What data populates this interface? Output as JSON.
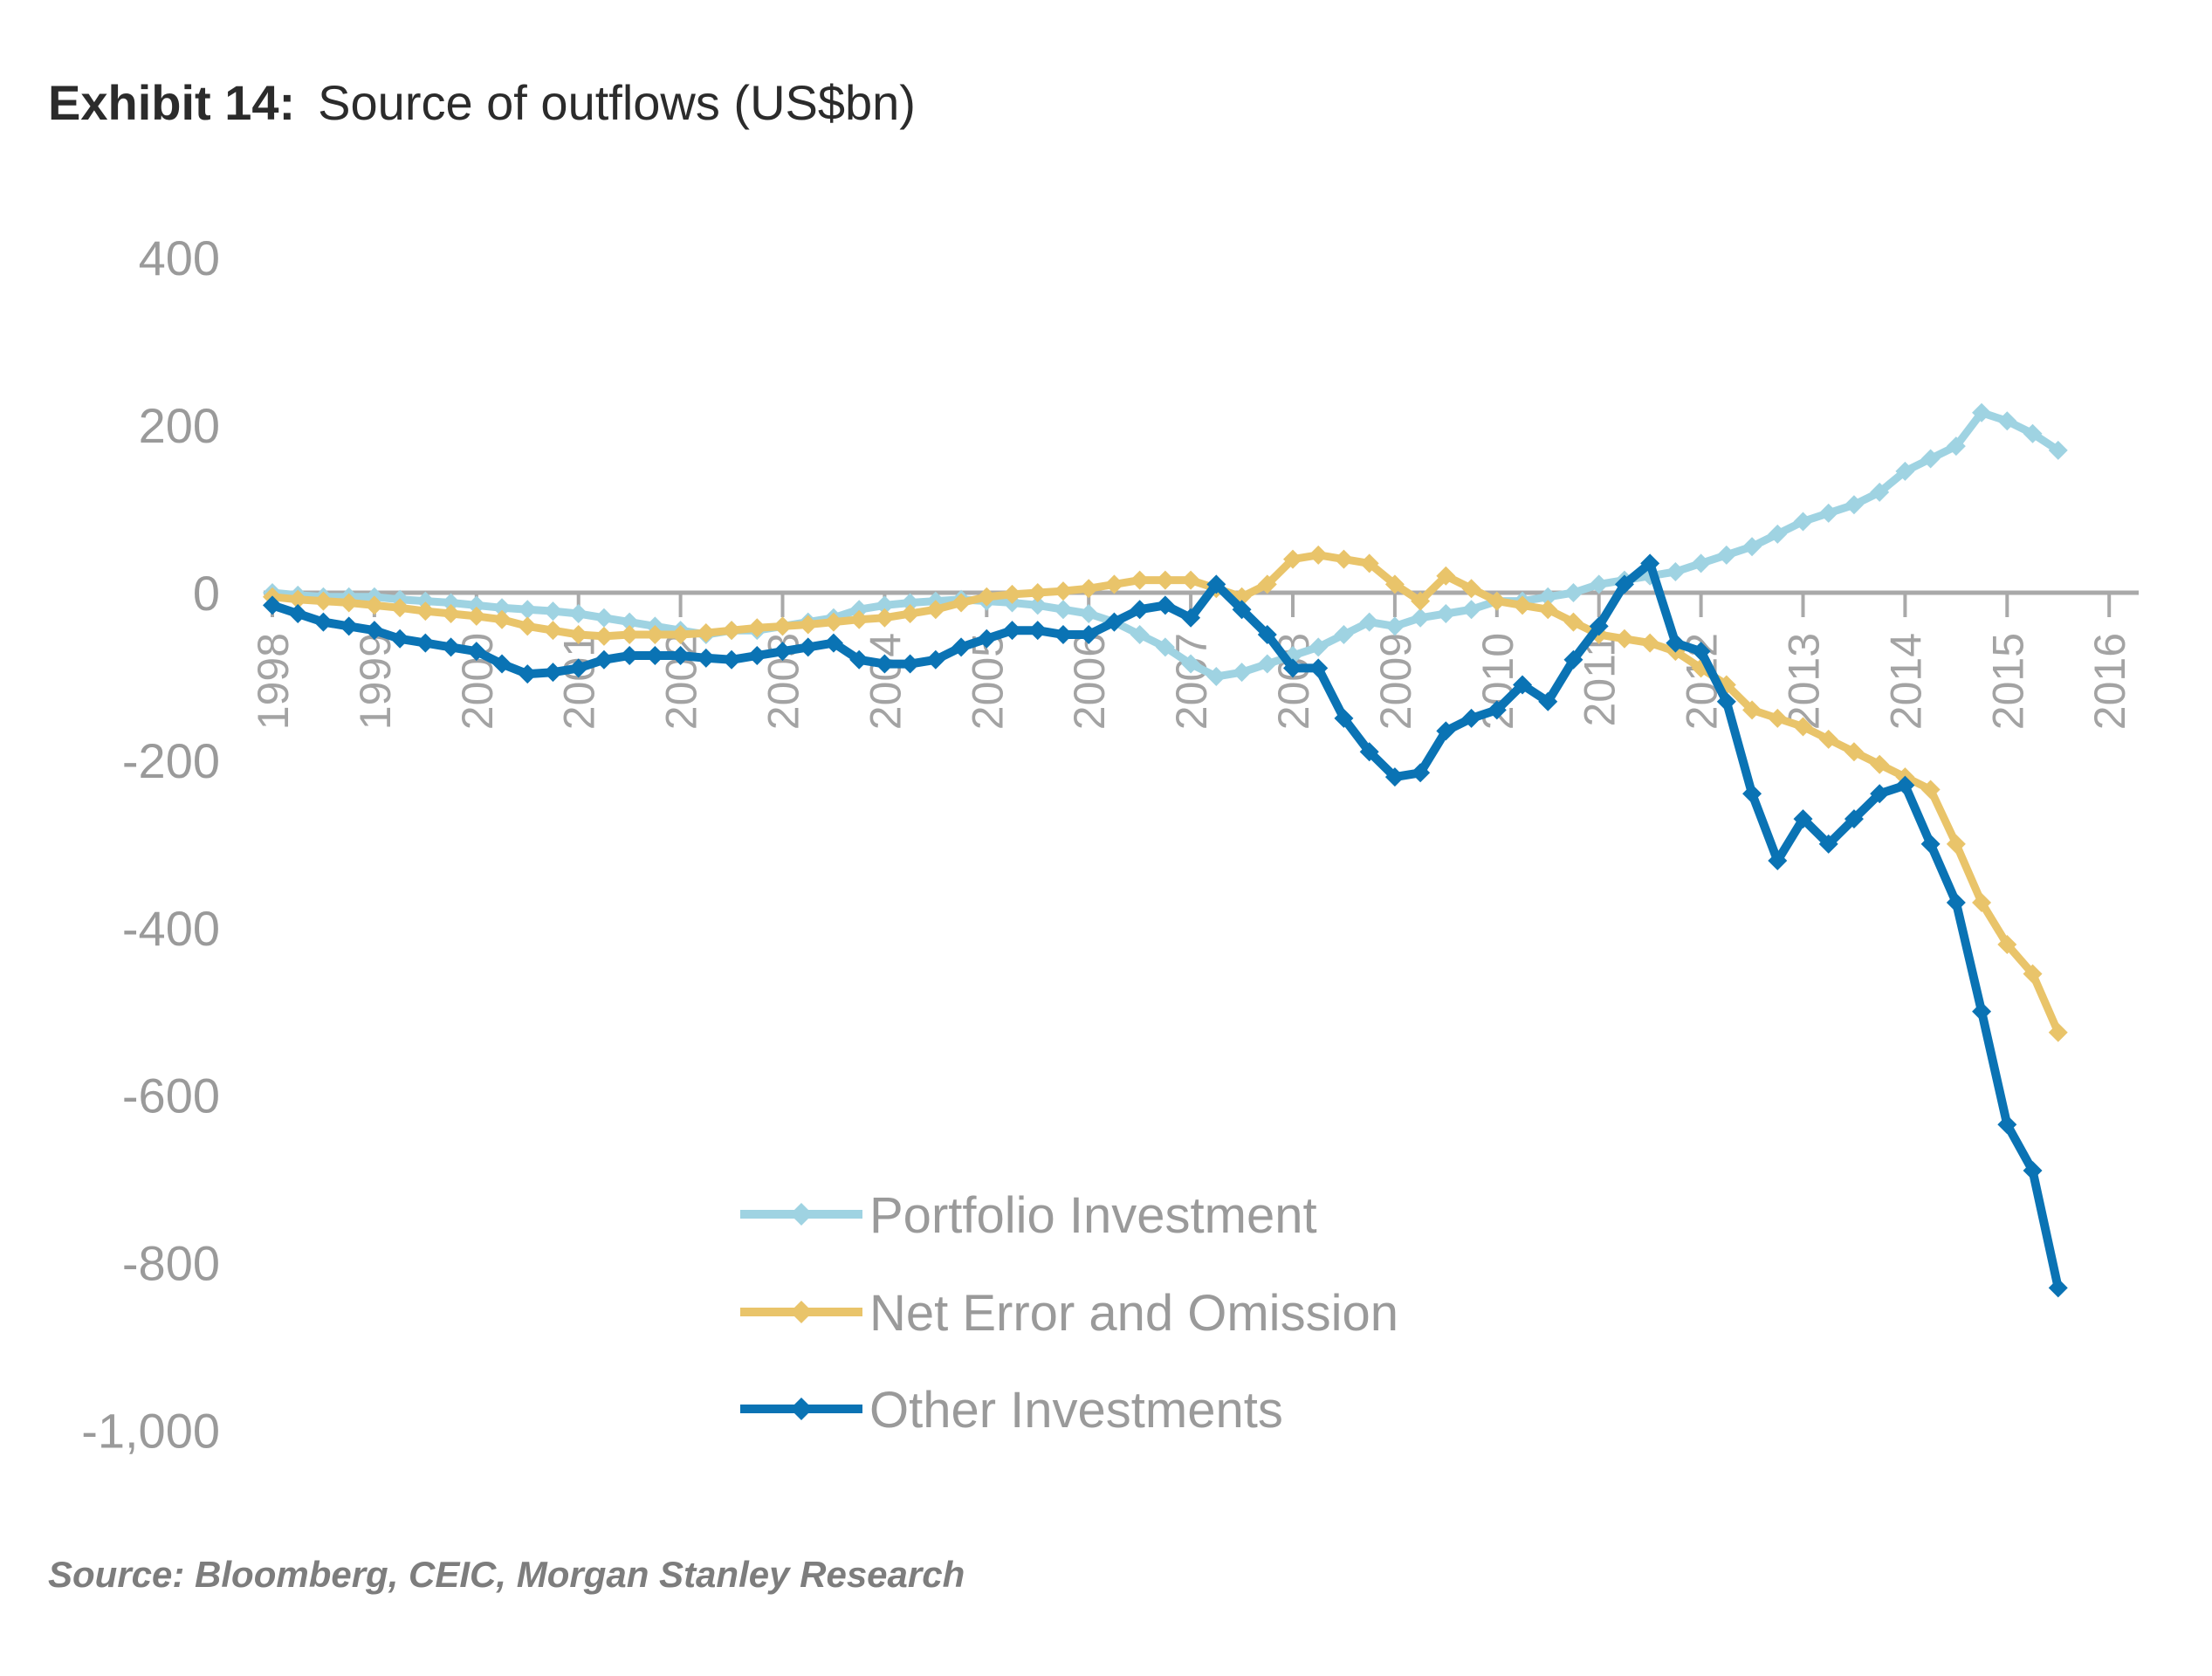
{
  "header": {
    "exhibit_label": "Exhibit 14:",
    "title": "Source of outflows (US$bn)"
  },
  "footer": {
    "source": "Source: Bloomberg, CEIC, Morgan Stanley Research"
  },
  "chart_data": {
    "type": "line",
    "title": "Source of outflows (US$bn)",
    "xlabel": "",
    "ylabel": "",
    "ylim": [
      -1000,
      400
    ],
    "xlim": [
      1998,
      2016
    ],
    "y_ticks": [
      400,
      200,
      0,
      -200,
      -400,
      -600,
      -800,
      -1000
    ],
    "y_tick_labels": [
      "400",
      "200",
      "0",
      "-200",
      "-400",
      "-600",
      "-800",
      "-1,000"
    ],
    "x_ticks": [
      1998,
      1999,
      2000,
      2001,
      2002,
      2003,
      2004,
      2005,
      2006,
      2007,
      2008,
      2009,
      2010,
      2011,
      2012,
      2013,
      2014,
      2015,
      2016
    ],
    "x_tick_labels": [
      "1998",
      "1999",
      "2000",
      "2001",
      "2002",
      "2003",
      "2004",
      "2005",
      "2006",
      "2007",
      "2008",
      "2009",
      "2010",
      "2011",
      "2012",
      "2013",
      "2014",
      "2015",
      "2016"
    ],
    "grid": false,
    "legend_position": "bottom-center",
    "x": [
      1998.0,
      1998.25,
      1998.5,
      1998.75,
      1999.0,
      1999.25,
      1999.5,
      1999.75,
      2000.0,
      2000.25,
      2000.5,
      2000.75,
      2001.0,
      2001.25,
      2001.5,
      2001.75,
      2002.0,
      2002.25,
      2002.5,
      2002.75,
      2003.0,
      2003.25,
      2003.5,
      2003.75,
      2004.0,
      2004.25,
      2004.5,
      2004.75,
      2005.0,
      2005.25,
      2005.5,
      2005.75,
      2006.0,
      2006.25,
      2006.5,
      2006.75,
      2007.0,
      2007.25,
      2007.5,
      2007.75,
      2008.0,
      2008.25,
      2008.5,
      2008.75,
      2009.0,
      2009.25,
      2009.5,
      2009.75,
      2010.0,
      2010.25,
      2010.5,
      2010.75,
      2011.0,
      2011.25,
      2011.5,
      2011.75,
      2012.0,
      2012.25,
      2012.5,
      2012.75,
      2013.0,
      2013.25,
      2013.5,
      2013.75,
      2014.0,
      2014.25,
      2014.5,
      2014.75,
      2015.0,
      2015.25,
      2015.5
    ],
    "series": [
      {
        "name": "Portfolio Investment",
        "color": "#9fd3e2",
        "values": [
          0,
          -3,
          -5,
          -5,
          -5,
          -8,
          -10,
          -12,
          -15,
          -18,
          -20,
          -22,
          -25,
          -30,
          -35,
          -40,
          -45,
          -50,
          -45,
          -45,
          -40,
          -35,
          -30,
          -20,
          -15,
          -12,
          -10,
          -8,
          -10,
          -12,
          -15,
          -20,
          -25,
          -35,
          -50,
          -65,
          -85,
          -100,
          -95,
          -85,
          -75,
          -65,
          -50,
          -35,
          -40,
          -30,
          -25,
          -20,
          -10,
          -10,
          -5,
          0,
          10,
          15,
          20,
          25,
          35,
          45,
          55,
          70,
          85,
          95,
          105,
          120,
          145,
          160,
          175,
          215,
          205,
          190,
          170
        ]
      },
      {
        "name": "Net Error and Omission",
        "color": "#e9c46a",
        "values": [
          -5,
          -8,
          -10,
          -12,
          -15,
          -18,
          -22,
          -25,
          -28,
          -32,
          -40,
          -45,
          -50,
          -52,
          -50,
          -50,
          -50,
          -48,
          -45,
          -42,
          -40,
          -38,
          -35,
          -32,
          -30,
          -25,
          -20,
          -12,
          -5,
          -2,
          0,
          2,
          5,
          10,
          15,
          15,
          15,
          5,
          -5,
          10,
          40,
          45,
          40,
          35,
          10,
          -10,
          20,
          5,
          -10,
          -15,
          -20,
          -35,
          -50,
          -55,
          -60,
          -70,
          -90,
          -110,
          -140,
          -150,
          -160,
          -175,
          -190,
          -205,
          -220,
          -235,
          -300,
          -370,
          -420,
          -455,
          -525
        ]
      },
      {
        "name": "Other Investments",
        "color": "#0a73b4",
        "values": [
          -15,
          -25,
          -35,
          -40,
          -45,
          -55,
          -60,
          -65,
          -70,
          -85,
          -97,
          -95,
          -90,
          -80,
          -75,
          -75,
          -75,
          -78,
          -80,
          -75,
          -70,
          -65,
          -60,
          -80,
          -85,
          -85,
          -80,
          -65,
          -55,
          -45,
          -45,
          -50,
          -50,
          -35,
          -20,
          -15,
          -30,
          10,
          -20,
          -50,
          -90,
          -90,
          -150,
          -190,
          -220,
          -215,
          -165,
          -150,
          -140,
          -110,
          -130,
          -80,
          -40,
          10,
          35,
          -60,
          -70,
          -130,
          -240,
          -320,
          -270,
          -300,
          -270,
          -240,
          -230,
          -300,
          -370,
          -500,
          -635,
          -690,
          -830
        ]
      }
    ]
  }
}
